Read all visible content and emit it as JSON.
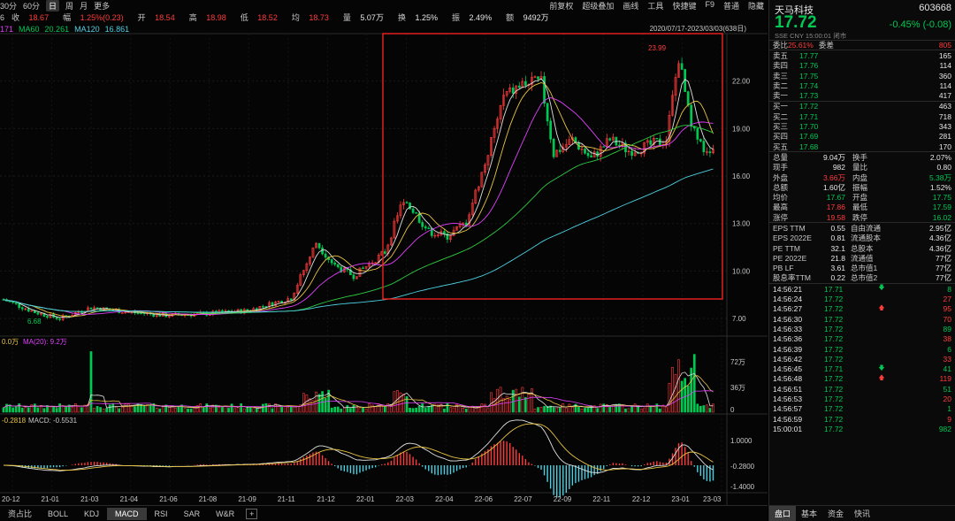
{
  "toolbar": {
    "periods": [
      "30分",
      "60分",
      "日",
      "周",
      "月",
      "更多"
    ],
    "active": "日",
    "tools": [
      "前复权",
      "超级叠加",
      "画线",
      "工具",
      "快捷键",
      "F9",
      "普通",
      "隐藏"
    ]
  },
  "ohlc": {
    "prev_label": "6",
    "close_label": "收",
    "close": "18.67",
    "chg_label": "幅",
    "chg": "1.25%(0.23)",
    "open_label": "开",
    "open": "18.54",
    "high_label": "高",
    "high": "18.98",
    "low_label": "低",
    "low": "18.52",
    "avg_label": "均",
    "avg": "18.73",
    "vol_label": "量",
    "vol": "5.07万",
    "turn_label": "换",
    "turn": "1.25%",
    "amp_label": "振",
    "amp": "2.49%",
    "amt_label": "额",
    "amt": "9492万"
  },
  "ma": {
    "ma20": "171",
    "ma60_label": "MA60",
    "ma60": "20.261",
    "ma120_label": "MA120",
    "ma120": "16.861"
  },
  "date_range": "2020/07/17-2023/03/03(638日)",
  "vol_panel": {
    "label1": "0.0万",
    "label2": "MA(20): 9.2万",
    "ticks": [
      "72万",
      "36万",
      "0"
    ]
  },
  "macd_panel": {
    "label1": "-0.2818",
    "label2": "MACD: -0.5531",
    "ticks": [
      "1.0000",
      "-0.2800",
      "-1.4000"
    ]
  },
  "price_axis": [
    "22.00",
    "19.00",
    "16.00",
    "13.00",
    "10.00",
    "7.00"
  ],
  "annotations": {
    "high": "23.99",
    "low": "6.68"
  },
  "dates": [
    "20-12",
    "21-01",
    "21-03",
    "21-04",
    "21-06",
    "21-08",
    "21-09",
    "21-11",
    "21-12",
    "22-01",
    "22-03",
    "22-04",
    "22-06",
    "22-07",
    "22-09",
    "22-11",
    "22-12",
    "23-01",
    "23-03"
  ],
  "bottom_tabs": [
    "资占比",
    "BOLL",
    "KDJ",
    "MACD",
    "RSI",
    "SAR",
    "W&R",
    "+"
  ],
  "bottom_active": "MACD",
  "stock": {
    "name": "天马科技",
    "code": "603668",
    "price": "17.72",
    "change": "-0.45%",
    "change_abs": "-0.08",
    "exchange": "SSE",
    "currency": "CNY",
    "time": "15:00:01",
    "status": "闭市"
  },
  "weibi": {
    "label": "委比",
    "value": "25.61%",
    "label2": "委差",
    "value2": "805"
  },
  "asks": [
    {
      "label": "卖五",
      "price": "17.77",
      "vol": "165"
    },
    {
      "label": "卖四",
      "price": "17.76",
      "vol": "114"
    },
    {
      "label": "卖三",
      "price": "17.75",
      "vol": "360"
    },
    {
      "label": "卖二",
      "price": "17.74",
      "vol": "114"
    },
    {
      "label": "卖一",
      "price": "17.73",
      "vol": "417"
    }
  ],
  "bids": [
    {
      "label": "买一",
      "price": "17.72",
      "vol": "463"
    },
    {
      "label": "买二",
      "price": "17.71",
      "vol": "718"
    },
    {
      "label": "买三",
      "price": "17.70",
      "vol": "343"
    },
    {
      "label": "买四",
      "price": "17.69",
      "vol": "281"
    },
    {
      "label": "买五",
      "price": "17.68",
      "vol": "170"
    }
  ],
  "stats": [
    {
      "l1": "总量",
      "v1": "9.04万",
      "l2": "换手",
      "v2": "2.07%",
      "c1": "white",
      "c2": "white"
    },
    {
      "l1": "现手",
      "v1": "982",
      "l2": "量比",
      "v2": "0.80",
      "c1": "white",
      "c2": "white"
    },
    {
      "l1": "外盘",
      "v1": "3.66万",
      "l2": "内盘",
      "v2": "5.38万",
      "c1": "red",
      "c2": "green"
    },
    {
      "l1": "总额",
      "v1": "1.60亿",
      "l2": "振幅",
      "v2": "1.52%",
      "c1": "white",
      "c2": "white"
    },
    {
      "l1": "均价",
      "v1": "17.67",
      "l2": "开盘",
      "v2": "17.75",
      "c1": "green",
      "c2": "green"
    },
    {
      "l1": "最高",
      "v1": "17.86",
      "l2": "最低",
      "v2": "17.59",
      "c1": "red",
      "c2": "green"
    },
    {
      "l1": "涨停",
      "v1": "19.58",
      "l2": "跌停",
      "v2": "16.02",
      "c1": "red",
      "c2": "green"
    }
  ],
  "fundamentals": [
    {
      "l1": "EPS TTM",
      "v1": "0.55",
      "l2": "自由流通",
      "v2": "2.95亿"
    },
    {
      "l1": "EPS 2022E",
      "v1": "0.81",
      "l2": "流通股本",
      "v2": "4.36亿"
    },
    {
      "l1": "PE TTM",
      "v1": "32.1",
      "l2": "总股本",
      "v2": "4.36亿"
    },
    {
      "l1": "PE 2022E",
      "v1": "21.8",
      "l2": "流通值",
      "v2": "77亿"
    },
    {
      "l1": "PB LF",
      "v1": "3.61",
      "l2": "总市值1",
      "v2": "77亿"
    },
    {
      "l1": "股息率TTM",
      "v1": "0.22",
      "l2": "总市值2",
      "v2": "77亿"
    }
  ],
  "ticks": [
    {
      "t": "14:56:21",
      "p": "17.71",
      "a": "down",
      "v": "8"
    },
    {
      "t": "14:56:24",
      "p": "17.72",
      "a": "",
      "v": "27"
    },
    {
      "t": "14:56:27",
      "p": "17.72",
      "a": "up",
      "v": "95"
    },
    {
      "t": "14:56:30",
      "p": "17.72",
      "a": "",
      "v": "70"
    },
    {
      "t": "14:56:33",
      "p": "17.72",
      "a": "",
      "v": "89"
    },
    {
      "t": "14:56:36",
      "p": "17.72",
      "a": "",
      "v": "38"
    },
    {
      "t": "14:56:39",
      "p": "17.72",
      "a": "",
      "v": "6"
    },
    {
      "t": "14:56:42",
      "p": "17.72",
      "a": "",
      "v": "33"
    },
    {
      "t": "14:56:45",
      "p": "17.71",
      "a": "down",
      "v": "41"
    },
    {
      "t": "14:56:48",
      "p": "17.72",
      "a": "up",
      "v": "119"
    },
    {
      "t": "14:56:51",
      "p": "17.72",
      "a": "",
      "v": "51"
    },
    {
      "t": "14:56:53",
      "p": "17.72",
      "a": "",
      "v": "20"
    },
    {
      "t": "14:56:57",
      "p": "17.72",
      "a": "",
      "v": "1"
    },
    {
      "t": "14:56:59",
      "p": "17.72",
      "a": "",
      "v": "9"
    },
    {
      "t": "15:00:01",
      "p": "17.72",
      "a": "",
      "v": "982"
    }
  ],
  "right_tabs": [
    "盘口",
    "基本",
    "资金",
    "快讯"
  ],
  "right_active": "盘口",
  "colors": {
    "up": "#ff3b3b",
    "down": "#00c853",
    "ma5": "#e0e0e0",
    "ma10": "#e8c342",
    "ma20": "#e040fb",
    "ma60": "#2ecc40",
    "ma120": "#4dd0e1",
    "highlight": "#e02020"
  }
}
